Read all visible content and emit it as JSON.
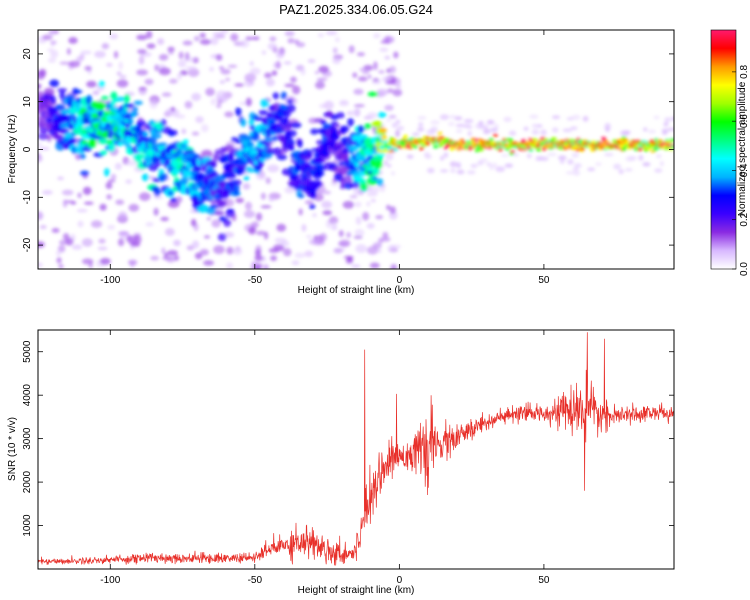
{
  "title": "PAZ1.2025.334.06.05.G24",
  "chart_data": [
    {
      "type": "heatmap",
      "name": "spectrogram",
      "xlabel": "Height of straight line (km)",
      "ylabel": "Frequency (Hz)",
      "xlim": [
        -125,
        95
      ],
      "ylim": [
        -25,
        25
      ],
      "xticks": [
        -100,
        -50,
        0,
        50
      ],
      "xtick_labels": [
        "-100",
        "-50",
        "0",
        "50"
      ],
      "yticks": [
        -20,
        -10,
        0,
        10,
        20
      ],
      "ytick_labels": [
        "-20",
        "-10",
        "0",
        "10",
        "20"
      ],
      "colorbar": {
        "label": "Normalized spectral amplitude",
        "range": [
          0,
          0.97
        ],
        "ticks": [
          0.0,
          0.2,
          0.4,
          0.6,
          0.8
        ],
        "tick_labels": [
          "0.0",
          "0.2",
          "0.4",
          "0.6",
          "0.8"
        ],
        "colors": [
          "#ffffff",
          "#d8b8ff",
          "#8a2be2",
          "#3a00ff",
          "#0000ff",
          "#00b4ff",
          "#00ffff",
          "#00ff7f",
          "#00ff00",
          "#a0ff00",
          "#ffff00",
          "#ff9a00",
          "#ff0000",
          "#ff1a6e"
        ]
      },
      "ridge": {
        "x": [
          -125,
          -118,
          -110,
          -100,
          -95,
          -90,
          -85,
          -80,
          -75,
          -70,
          -65,
          -60,
          -55,
          -50,
          -45,
          -40,
          -35,
          -30,
          -25,
          -20,
          -15,
          -10,
          -5,
          0,
          10,
          20,
          30,
          40,
          50,
          60,
          70,
          80,
          95
        ],
        "y": [
          9,
          6,
          5,
          6,
          5,
          3,
          0,
          -2,
          -4,
          -6,
          -8,
          -9,
          -1,
          0,
          5,
          6,
          -4,
          -6,
          3,
          -1,
          -2,
          -1,
          1,
          1,
          2,
          1,
          1,
          1,
          1,
          1,
          1,
          1,
          1
        ],
        "amplitude": [
          0.15,
          0.3,
          0.5,
          0.55,
          0.5,
          0.45,
          0.45,
          0.4,
          0.5,
          0.4,
          0.35,
          0.3,
          0.35,
          0.45,
          0.35,
          0.3,
          0.35,
          0.3,
          0.3,
          0.25,
          0.4,
          0.55,
          0.75,
          0.85,
          0.9,
          0.9,
          0.92,
          0.9,
          0.92,
          0.9,
          0.92,
          0.9,
          0.9
        ]
      }
    },
    {
      "type": "line",
      "name": "snr",
      "xlabel": "Height of straight line (km)",
      "ylabel": "SNR (10 * v/v)",
      "xlim": [
        -125,
        95
      ],
      "ylim": [
        0,
        5500
      ],
      "xticks": [
        -100,
        -50,
        0,
        50
      ],
      "xtick_labels": [
        "-100",
        "-50",
        "0",
        "50"
      ],
      "yticks": [
        1000,
        2000,
        3000,
        4000,
        5000
      ],
      "ytick_labels": [
        "1000",
        "2000",
        "3000",
        "4000",
        "5000"
      ],
      "color": "#e8302a",
      "series": [
        {
          "name": "SNR",
          "x": [
            -125,
            -115,
            -105,
            -95,
            -85,
            -75,
            -65,
            -55,
            -50,
            -45,
            -40,
            -35,
            -30,
            -25,
            -20,
            -15,
            -12,
            -10,
            -8,
            -5,
            0,
            5,
            10,
            15,
            20,
            25,
            30,
            40,
            50,
            55,
            60,
            63,
            65,
            68,
            70,
            75,
            80,
            85,
            90,
            95
          ],
          "mean": [
            180,
            180,
            200,
            230,
            260,
            250,
            250,
            250,
            260,
            450,
            550,
            650,
            600,
            450,
            350,
            400,
            1300,
            1800,
            2000,
            2400,
            2600,
            2700,
            2700,
            2900,
            3000,
            3200,
            3400,
            3550,
            3600,
            3650,
            3600,
            3700,
            3600,
            3550,
            3550,
            3500,
            3550,
            3600,
            3600,
            3550
          ],
          "noise": [
            60,
            60,
            80,
            100,
            120,
            110,
            110,
            100,
            100,
            200,
            300,
            350,
            350,
            300,
            250,
            250,
            500,
            600,
            450,
            400,
            350,
            400,
            700,
            400,
            300,
            250,
            200,
            180,
            180,
            300,
            500,
            700,
            600,
            500,
            300,
            200,
            180,
            180,
            180,
            150
          ],
          "spikes": [
            {
              "x": -12,
              "value": 5050
            },
            {
              "x": -1,
              "value": 4030
            },
            {
              "x": 11,
              "value": 4000
            },
            {
              "x": 65,
              "value": 5450
            },
            {
              "x": 71,
              "value": 5300
            },
            {
              "x": 64,
              "value": 1800
            }
          ]
        }
      ]
    }
  ]
}
